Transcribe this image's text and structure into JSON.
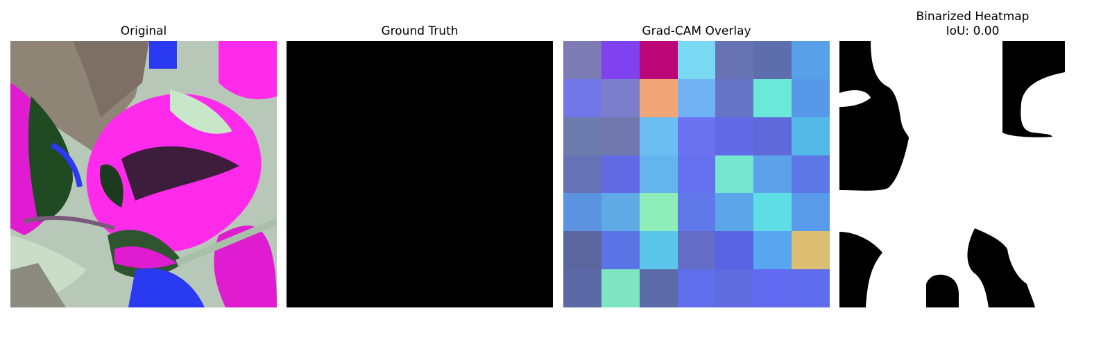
{
  "panels": [
    {
      "title": "Original"
    },
    {
      "title": "Ground Truth"
    },
    {
      "title": "Grad-CAM Overlay"
    },
    {
      "title": "Binarized Heatmap\nIoU: 0.00"
    }
  ],
  "gradcam_cells": [
    [
      "#7c7bb3",
      "#8042ee",
      "#ba0677",
      "#79d8f2",
      "#6773b2",
      "#5e6ead",
      "#58a1e8"
    ],
    [
      "#7276e8",
      "#7b7fcb",
      "#f3a57a",
      "#71b2f4",
      "#6674c5",
      "#6ae8d8",
      "#5898e8"
    ],
    [
      "#6e7bad",
      "#7078ae",
      "#6cbdf1",
      "#6c73f0",
      "#6169e6",
      "#5f69da",
      "#54b8e6"
    ],
    [
      "#6872b6",
      "#6369e4",
      "#64b4ee",
      "#6671f0",
      "#77e6cf",
      "#5ca2ea",
      "#5e78e6"
    ],
    [
      "#5b93e0",
      "#60abe6",
      "#8eedb9",
      "#5f78ea",
      "#5ca5e9",
      "#5fdee6",
      "#5a9aea"
    ],
    [
      "#5b669e",
      "#5a74e6",
      "#5bc6ea",
      "#646cc6",
      "#5a64e2",
      "#59a5ef",
      "#dbbe72"
    ],
    [
      "#5b69a6",
      "#7de5c0",
      "#5c6aa8",
      "#5f6eea",
      "#5e6ce0",
      "#6169f0",
      "#5f6cee"
    ]
  ]
}
